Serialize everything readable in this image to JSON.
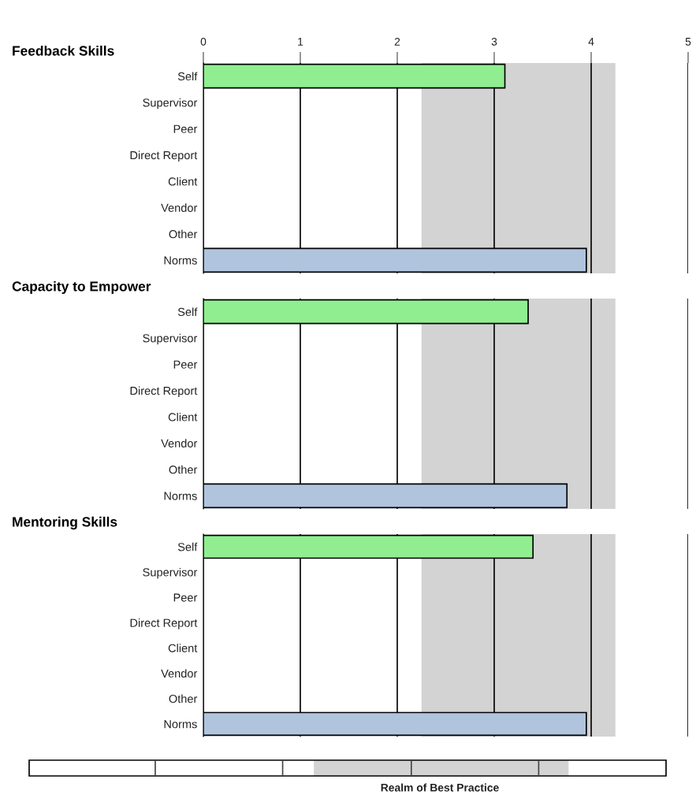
{
  "chart_data": [
    {
      "type": "bar",
      "orientation": "horizontal",
      "title": "Feedback Skills",
      "categories": [
        "Self",
        "Supervisor",
        "Peer",
        "Direct Report",
        "Client",
        "Vendor",
        "Other",
        "Norms"
      ],
      "values": [
        3.11,
        null,
        null,
        null,
        null,
        null,
        null,
        3.95
      ],
      "colors": [
        "#90ee90",
        null,
        null,
        null,
        null,
        null,
        null,
        "#b0c4de"
      ],
      "xlim": [
        0,
        5
      ],
      "xticks": [
        0,
        1,
        2,
        3,
        4,
        5
      ],
      "grid": "x",
      "bands": [
        {
          "axis": "x",
          "from": 2.25,
          "to": 4.25,
          "color": "#d3d3d3"
        }
      ]
    },
    {
      "type": "bar",
      "orientation": "horizontal",
      "title": "Capacity to Empower",
      "categories": [
        "Self",
        "Supervisor",
        "Peer",
        "Direct Report",
        "Client",
        "Vendor",
        "Other",
        "Norms"
      ],
      "values": [
        3.35,
        null,
        null,
        null,
        null,
        null,
        null,
        3.75
      ],
      "colors": [
        "#90ee90",
        null,
        null,
        null,
        null,
        null,
        null,
        "#b0c4de"
      ],
      "xlim": [
        0,
        5
      ],
      "xticks": [
        0,
        1,
        2,
        3,
        4,
        5
      ],
      "grid": "x",
      "tick_labels": "y",
      "bands": [
        {
          "axis": "x",
          "from": 2.25,
          "to": 4.25,
          "color": "#d3d3d3"
        }
      ]
    },
    {
      "type": "bar",
      "orientation": "horizontal",
      "title": "Mentoring Skills",
      "categories": [
        "Self",
        "Supervisor",
        "Peer",
        "Direct Report",
        "Client",
        "Vendor",
        "Other",
        "Norms"
      ],
      "values": [
        3.4,
        null,
        null,
        null,
        null,
        null,
        null,
        3.95
      ],
      "colors": [
        "#90ee90",
        null,
        null,
        null,
        null,
        null,
        null,
        "#b0c4de"
      ],
      "xlim": [
        0,
        5
      ],
      "xticks": [
        0,
        1,
        2,
        3,
        4,
        5
      ],
      "grid": "x",
      "tick_labels": "y",
      "bands": [
        {
          "axis": "x",
          "from": 2.25,
          "to": 4.25,
          "color": "#d3d3d3"
        }
      ],
      "annotations": [
        "Realm of Best Practice"
      ]
    }
  ]
}
